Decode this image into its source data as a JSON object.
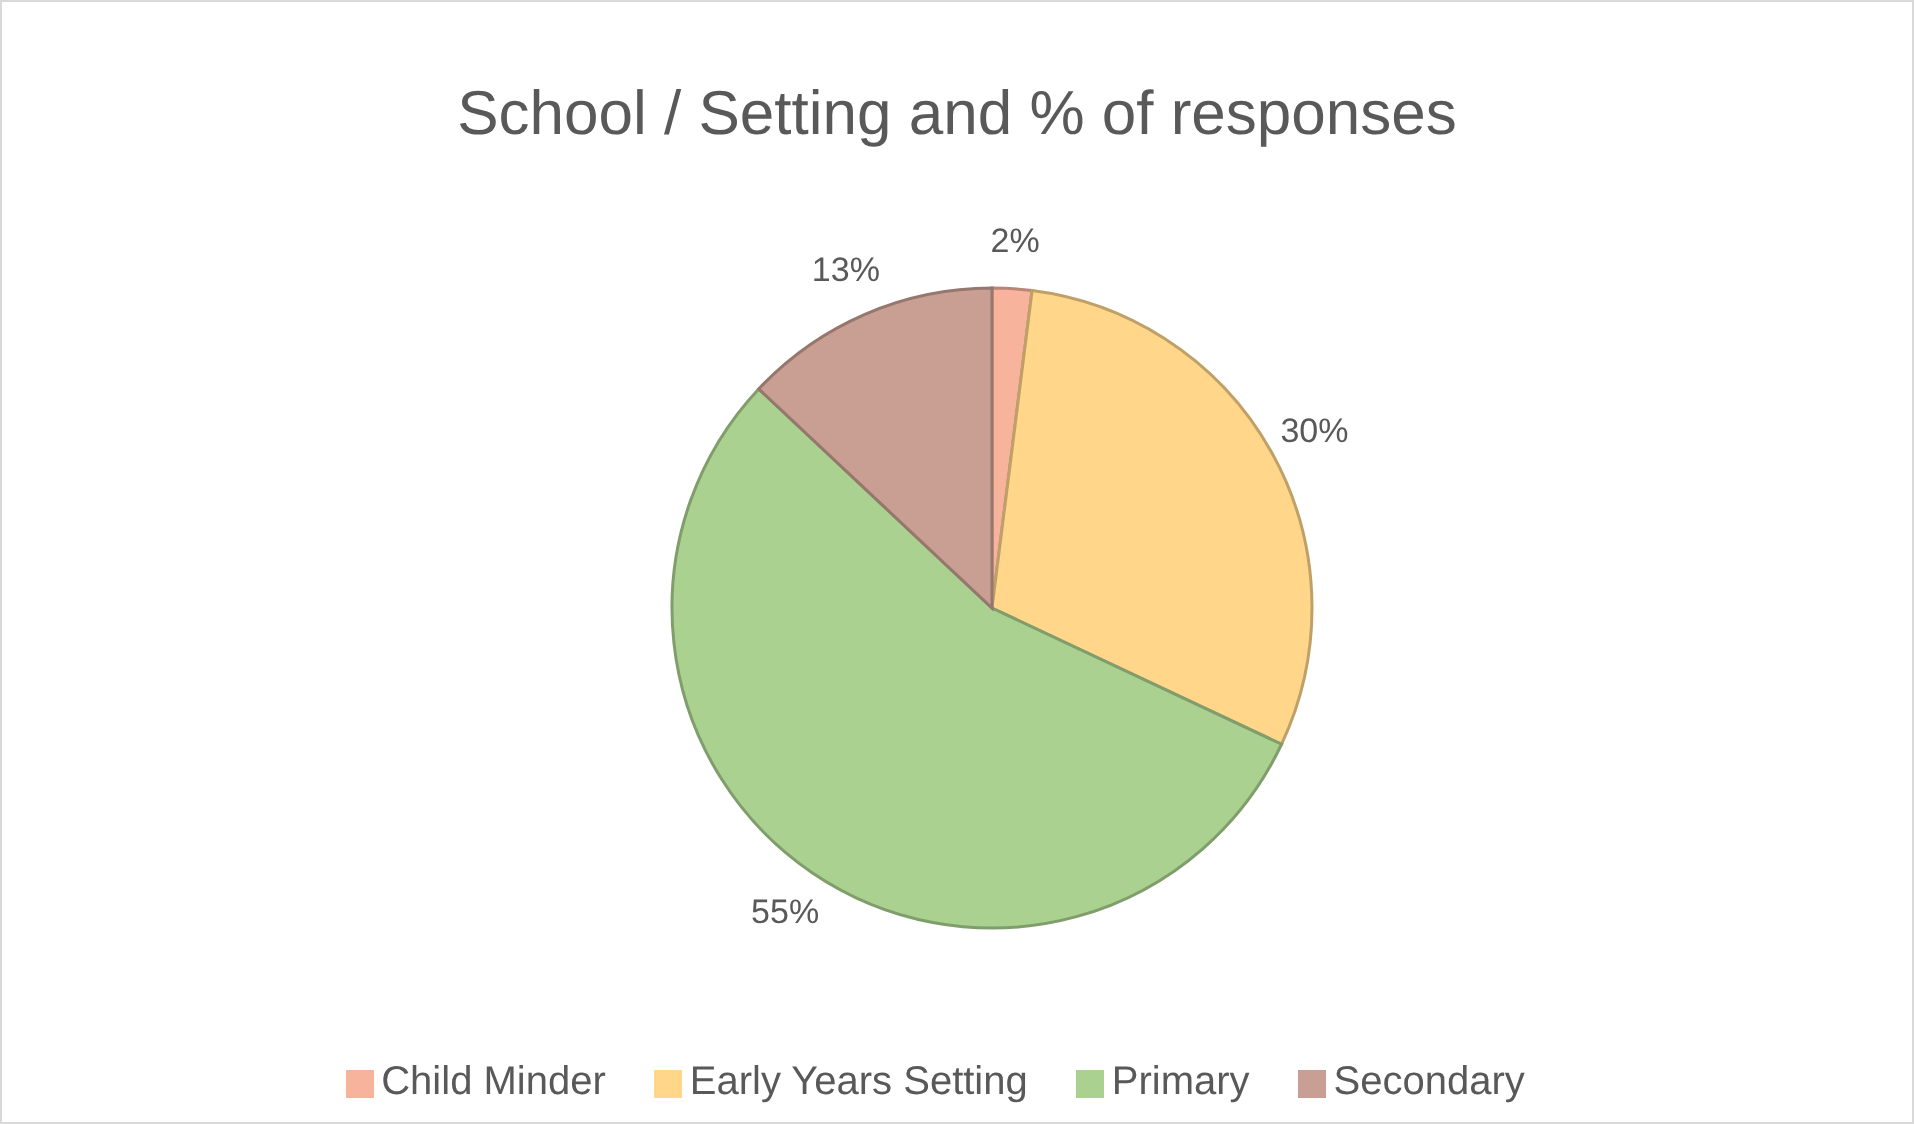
{
  "chart_data": {
    "type": "pie",
    "title": "School / Setting and % of responses",
    "categories": [
      "Child Minder",
      "Early Years Setting",
      "Primary",
      "Secondary"
    ],
    "values": [
      2,
      30,
      55,
      13
    ],
    "colors": [
      "#f7b39c",
      "#ffd68a",
      "#aad190",
      "#c89f92"
    ],
    "value_labels": [
      "2%",
      "30%",
      "55%",
      "13%"
    ],
    "legend": "bottom"
  }
}
